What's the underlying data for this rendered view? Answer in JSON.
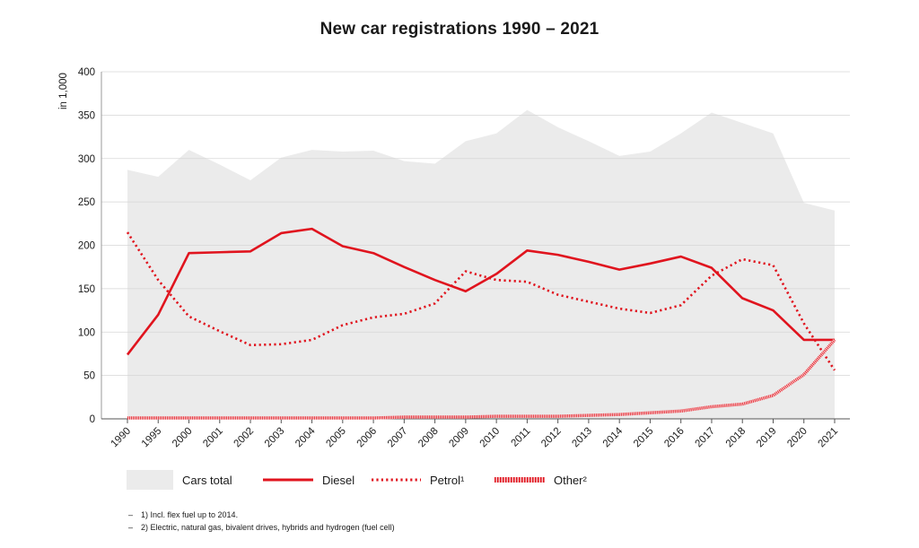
{
  "chart_data": {
    "type": "line",
    "title": "New car registrations 1990 – 2021",
    "ylabel": "in 1,000",
    "xlabel": "",
    "ylim": [
      0,
      400
    ],
    "yticks": [
      0,
      50,
      100,
      150,
      200,
      250,
      300,
      350,
      400
    ],
    "categories": [
      "1990",
      "1995",
      "2000",
      "2001",
      "2002",
      "2003",
      "2004",
      "2005",
      "2006",
      "2007",
      "2008",
      "2009",
      "2010",
      "2011",
      "2012",
      "2013",
      "2014",
      "2015",
      "2016",
      "2017",
      "2018",
      "2019",
      "2020",
      "2021"
    ],
    "series": [
      {
        "name": "Cars total",
        "style": "area",
        "color": "#ebebeb",
        "values": [
          287,
          279,
          310,
          293,
          275,
          301,
          310,
          308,
          309,
          297,
          294,
          320,
          329,
          356,
          336,
          320,
          303,
          308,
          329,
          353,
          341,
          329,
          249,
          240
        ]
      },
      {
        "name": "Diesel",
        "style": "solid",
        "color": "#e0141e",
        "values": [
          74,
          120,
          191,
          192,
          193,
          214,
          219,
          199,
          191,
          175,
          160,
          147,
          167,
          194,
          189,
          181,
          172,
          179,
          187,
          174,
          139,
          125,
          91,
          91
        ]
      },
      {
        "name": "Petrol",
        "style": "dotted",
        "color": "#e0141e",
        "values": [
          215,
          160,
          118,
          101,
          85,
          86,
          91,
          108,
          117,
          121,
          133,
          170,
          160,
          158,
          143,
          135,
          127,
          122,
          131,
          165,
          184,
          177,
          110,
          56
        ]
      },
      {
        "name": "Other",
        "style": "hatched",
        "color": "#e0141e",
        "values": [
          1,
          1,
          1,
          1,
          1,
          1,
          1,
          1,
          1,
          2,
          2,
          2,
          3,
          3,
          3,
          4,
          5,
          7,
          9,
          14,
          17,
          27,
          51,
          91
        ]
      }
    ],
    "legend": {
      "position": "bottom",
      "items": [
        {
          "label": "Cars total"
        },
        {
          "label": "Diesel"
        },
        {
          "label": "Petrol¹"
        },
        {
          "label": "Other²"
        }
      ]
    },
    "footnotes": [
      "1) Incl. flex fuel up to 2014.",
      "2) Electric, natural gas, bivalent drives, hybrids and hydrogen (fuel cell)"
    ],
    "footnote_marker": "–",
    "grid": true
  }
}
